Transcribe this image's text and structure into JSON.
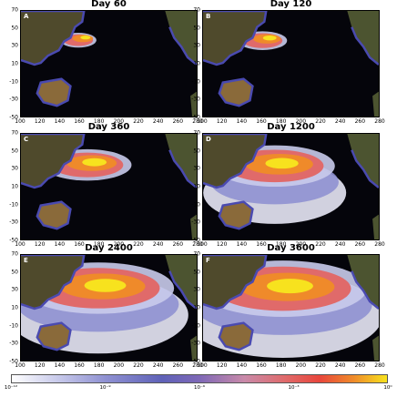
{
  "panels": [
    {
      "title": "Day 60",
      "letter": "A",
      "spread": 0.12
    },
    {
      "title": "Day 120",
      "letter": "B",
      "spread": 0.2
    },
    {
      "title": "Day 360",
      "letter": "C",
      "spread": 0.45
    },
    {
      "title": "Day 1200",
      "letter": "D",
      "spread": 0.65
    },
    {
      "title": "Day 2400",
      "letter": "E",
      "spread": 0.85
    },
    {
      "title": "Day 3600",
      "letter": "F",
      "spread": 0.95
    }
  ],
  "y_ticks": [
    "70",
    "50",
    "30",
    "10",
    "-10",
    "-30",
    "-50"
  ],
  "x_ticks": [
    "100",
    "120",
    "140",
    "160",
    "180",
    "200",
    "220",
    "240",
    "260",
    "280"
  ],
  "colorbar": {
    "labels": [
      "10⁻¹²",
      "10⁻⁹",
      "10⁻⁶",
      "10⁻³",
      "10⁰"
    ],
    "colors": [
      "#ffffff",
      "#8f91d2",
      "#5f62b8",
      "#e8463c",
      "#f7e21e"
    ]
  },
  "colors": {
    "ocean": "#05050b",
    "land": "#5b5030",
    "coast": "#4a4ab0"
  }
}
